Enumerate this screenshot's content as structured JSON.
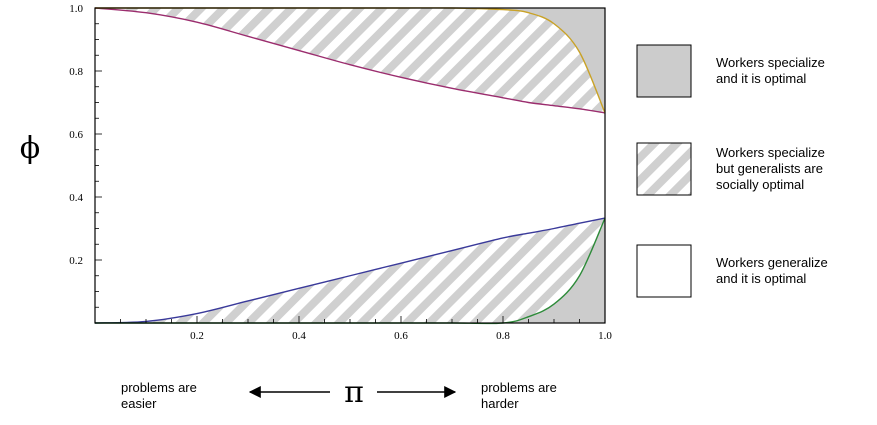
{
  "chart_data": {
    "type": "area",
    "title": "",
    "xlabel": "π",
    "ylabel": "ϕ",
    "xlim": [
      0,
      1
    ],
    "ylim": [
      0,
      1
    ],
    "grid": false,
    "xticks": [
      0.2,
      0.4,
      0.6,
      0.8,
      1.0
    ],
    "xtick_labels": [
      "0.2",
      "0.4",
      "0.6",
      "0.8",
      "1.0"
    ],
    "yticks": [
      0.2,
      0.4,
      0.6,
      0.8,
      1.0
    ],
    "ytick_labels": [
      "0.2",
      "0.4",
      "0.6",
      "0.8",
      "1.0"
    ],
    "x": [
      0,
      0.1,
      0.2,
      0.3,
      0.4,
      0.5,
      0.6,
      0.7,
      0.8,
      0.85,
      0.9,
      0.95,
      1.0
    ],
    "series": [
      {
        "color": "#9b2d6e",
        "values": [
          1.0,
          0.985,
          0.955,
          0.91,
          0.865,
          0.82,
          0.78,
          0.745,
          0.715,
          0.7,
          0.69,
          0.68,
          0.667
        ]
      },
      {
        "color": "#c9a227",
        "values": [
          1.0,
          1.0,
          1.0,
          1.0,
          1.0,
          1.0,
          1.0,
          1.0,
          0.995,
          0.985,
          0.95,
          0.86,
          0.667
        ]
      },
      {
        "color": "#3a3a9a",
        "values": [
          0.0,
          0.005,
          0.03,
          0.07,
          0.11,
          0.15,
          0.19,
          0.23,
          0.27,
          0.285,
          0.3,
          0.317,
          0.333
        ]
      },
      {
        "color": "#2e8b3a",
        "values": [
          0.0,
          0.0,
          0.0,
          0.0,
          0.0,
          0.0,
          0.0,
          0.0,
          0.0,
          0.02,
          0.06,
          0.15,
          0.333
        ]
      }
    ],
    "legend": {
      "placement": "right",
      "items": [
        {
          "label": [
            "Workers specialize",
            "and it is optimal"
          ],
          "fill": "solid",
          "color": "#cccccc"
        },
        {
          "label": [
            "Workers specialize",
            "but generalists are",
            "socially optimal"
          ],
          "fill": "hatched",
          "color": "#cccccc"
        },
        {
          "label": [
            "Workers generalize",
            "and it is optimal"
          ],
          "fill": "white",
          "color": "#ffffff"
        }
      ]
    },
    "annotations": {
      "left": [
        "problems are",
        "easier"
      ],
      "right": [
        "problems are",
        "harder"
      ]
    }
  }
}
